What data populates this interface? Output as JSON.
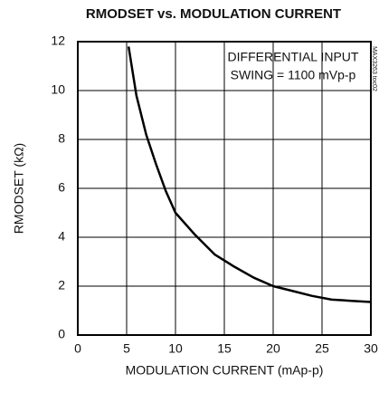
{
  "chart_data": {
    "type": "line",
    "title": "RMODSET vs. MODULATION CURRENT",
    "xlabel": "MODULATION CURRENT (mAp-p)",
    "ylabel": "RMODSET (kΩ)",
    "annotations": [
      "DIFFERENTIAL INPUT",
      "SWING = 1100 mVp-p"
    ],
    "side_label": "MAX3263 toc02",
    "x": [
      5.2,
      6,
      7,
      8,
      9,
      10,
      12,
      14,
      16,
      18,
      20,
      22,
      24,
      26,
      28,
      30
    ],
    "series": [
      {
        "name": "RMODSET",
        "color": "#000000",
        "values": [
          11.8,
          9.8,
          8.2,
          7.0,
          5.9,
          5.0,
          4.1,
          3.3,
          2.8,
          2.35,
          2.0,
          1.8,
          1.6,
          1.45,
          1.4,
          1.35
        ]
      }
    ],
    "xlim": [
      0,
      30
    ],
    "xticks": [
      0,
      5,
      10,
      15,
      20,
      25,
      30
    ],
    "ylim": [
      0,
      12
    ],
    "yticks": [
      0,
      2,
      4,
      6,
      8,
      10,
      12
    ],
    "grid": true
  }
}
